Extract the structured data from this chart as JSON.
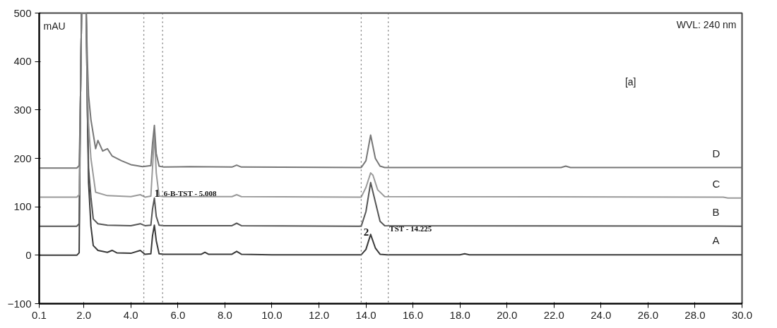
{
  "chart_data": {
    "type": "line",
    "ylabel": "mAU",
    "xlim": [
      0.1,
      30.0
    ],
    "ylim": [
      -100,
      500
    ],
    "xticks": [
      {
        "value": 0.1,
        "label": "0.1"
      },
      {
        "value": 2,
        "label": "2.0"
      },
      {
        "value": 4,
        "label": "4.0"
      },
      {
        "value": 6,
        "label": "6.0"
      },
      {
        "value": 8,
        "label": "8.0"
      },
      {
        "value": 10,
        "label": "10.0"
      },
      {
        "value": 12,
        "label": "12.0"
      },
      {
        "value": 14,
        "label": "14.0"
      },
      {
        "value": 16,
        "label": "16.0"
      },
      {
        "value": 18,
        "label": "18.0"
      },
      {
        "value": 20,
        "label": "20.0"
      },
      {
        "value": 22,
        "label": "22.0"
      },
      {
        "value": 24,
        "label": "24.0"
      },
      {
        "value": 26,
        "label": "26.0"
      },
      {
        "value": 28,
        "label": "28.0"
      },
      {
        "value": 30,
        "label": "30.0"
      }
    ],
    "yticks": [
      -100,
      0,
      100,
      200,
      300,
      400,
      500
    ],
    "grid": false,
    "marker": "none",
    "line_style": "solid",
    "series": [
      {
        "name": "A",
        "color": "#3a3a3a",
        "x": [
          0.1,
          1.7,
          1.8,
          1.85,
          1.9,
          2.1,
          2.15,
          2.2,
          2.3,
          2.4,
          2.6,
          3.0,
          3.2,
          3.4,
          4.0,
          4.4,
          4.6,
          4.85,
          4.92,
          5.0,
          5.08,
          5.2,
          5.4,
          6.0,
          7.0,
          7.15,
          7.3,
          8.3,
          8.5,
          8.7,
          10.0,
          13.8,
          14.0,
          14.2,
          14.4,
          14.6,
          14.9,
          18.0,
          18.2,
          18.4,
          30.0
        ],
        "values": [
          0,
          0,
          5,
          300,
          500,
          500,
          300,
          150,
          60,
          20,
          10,
          6,
          10,
          5,
          4,
          10,
          2,
          3,
          40,
          62,
          30,
          3,
          2,
          2,
          2,
          6,
          2,
          2,
          8,
          2,
          1,
          1,
          12,
          43,
          15,
          2,
          1,
          1,
          3,
          1,
          1
        ]
      },
      {
        "name": "B",
        "color": "#555555",
        "x": [
          0.1,
          1.7,
          1.8,
          1.85,
          1.9,
          2.1,
          2.15,
          2.2,
          2.3,
          2.4,
          2.6,
          3.0,
          4.0,
          4.4,
          4.6,
          4.85,
          4.92,
          5.0,
          5.08,
          5.2,
          5.4,
          7.0,
          8.3,
          8.5,
          8.7,
          13.8,
          14.0,
          14.2,
          14.4,
          14.6,
          14.8,
          30.0
        ],
        "values": [
          60,
          60,
          65,
          300,
          500,
          500,
          300,
          180,
          120,
          75,
          65,
          62,
          61,
          65,
          61,
          62,
          95,
          118,
          80,
          62,
          61,
          61,
          61,
          66,
          61,
          60,
          90,
          150,
          110,
          70,
          61,
          60
        ]
      },
      {
        "name": "C",
        "color": "#9a9a9a",
        "x": [
          0.1,
          1.7,
          1.8,
          1.85,
          1.9,
          2.1,
          2.15,
          2.2,
          2.3,
          2.5,
          3.0,
          4.0,
          4.4,
          4.6,
          4.85,
          4.92,
          5.0,
          5.08,
          5.2,
          5.4,
          8.3,
          8.5,
          8.7,
          13.8,
          14.0,
          14.2,
          14.3,
          14.5,
          14.8,
          29.2,
          29.4,
          30.0
        ],
        "values": [
          120,
          120,
          125,
          300,
          500,
          500,
          350,
          270,
          200,
          130,
          123,
          121,
          125,
          120,
          122,
          180,
          250,
          170,
          122,
          121,
          121,
          125,
          121,
          120,
          140,
          170,
          165,
          135,
          121,
          120,
          118,
          118
        ]
      },
      {
        "name": "D",
        "color": "#777777",
        "x": [
          0.1,
          1.7,
          1.8,
          1.85,
          1.9,
          2.1,
          2.15,
          2.2,
          2.3,
          2.5,
          2.6,
          2.8,
          3.0,
          3.2,
          3.6,
          4.0,
          4.5,
          4.85,
          4.92,
          5.0,
          5.08,
          5.2,
          5.4,
          6.5,
          8.3,
          8.5,
          8.7,
          13.8,
          14.0,
          14.2,
          14.4,
          14.6,
          14.8,
          22.3,
          22.5,
          22.7,
          30.0
        ],
        "values": [
          180,
          180,
          185,
          300,
          500,
          500,
          400,
          330,
          280,
          220,
          237,
          215,
          220,
          205,
          195,
          187,
          183,
          185,
          230,
          268,
          210,
          184,
          182,
          183,
          182,
          186,
          182,
          181,
          195,
          248,
          200,
          184,
          181,
          181,
          184,
          181,
          181
        ]
      }
    ],
    "ref_lines": [
      {
        "axis": "x",
        "value": 4.55,
        "color": "#777777",
        "line_style": "dotted"
      },
      {
        "axis": "x",
        "value": 5.35,
        "color": "#777777",
        "line_style": "dotted"
      },
      {
        "axis": "x",
        "value": 13.8,
        "color": "#777777",
        "line_style": "dotted"
      },
      {
        "axis": "x",
        "value": 14.95,
        "color": "#777777",
        "line_style": "dotted"
      }
    ],
    "annotations": [
      "WVL: 240 nm",
      "[a]",
      {
        "text": "1",
        "x": 5.0,
        "y": 128
      },
      {
        "text": "6-B-TST - 5.008",
        "x": 5.4,
        "y": 128
      },
      {
        "text": "2",
        "x": 13.9,
        "y": 48
      },
      {
        "text": "TST - 14.225",
        "x": 15.0,
        "y": 55
      }
    ]
  }
}
